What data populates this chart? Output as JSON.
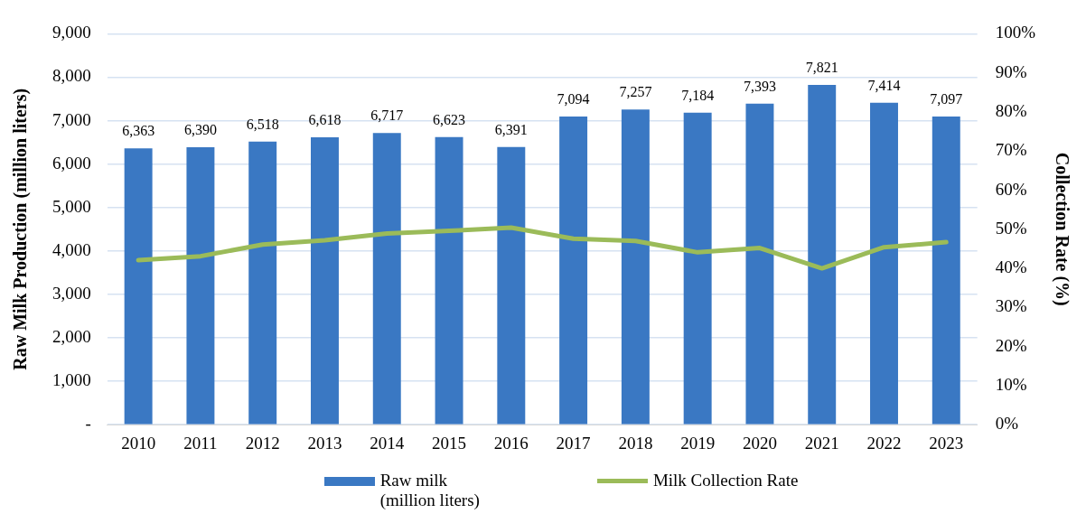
{
  "chart_data": {
    "type": "bar",
    "ylabel": "Raw Milk Production (million liters)",
    "y2label": "Collection Rate (%)",
    "categories": [
      "2010",
      "2011",
      "2012",
      "2013",
      "2014",
      "2015",
      "2016",
      "2017",
      "2018",
      "2019",
      "2020",
      "2021",
      "2022",
      "2023"
    ],
    "series": [
      {
        "name": "Raw milk\n(million liters)",
        "color": "#3a78c3",
        "values": [
          6363,
          6390,
          6518,
          6618,
          6717,
          6623,
          6391,
          7094,
          7257,
          7184,
          7393,
          7821,
          7414,
          7097
        ],
        "value_labels": [
          "6,363",
          "6,390",
          "6,518",
          "6,618",
          "6,717",
          "6,623",
          "6,391",
          "7,094",
          "7,257",
          "7,184",
          "7,393",
          "7,821",
          "7,414",
          "7,097"
        ]
      },
      {
        "name": "Milk Collection Rate",
        "type": "line",
        "axis": "y2",
        "color": "#9bbb59",
        "values": [
          42.1,
          43.1,
          46.1,
          47.2,
          48.9,
          49.6,
          50.4,
          47.6,
          47.0,
          44.1,
          45.2,
          40.0,
          45.4,
          46.7
        ]
      }
    ],
    "ylim": [
      0,
      9000
    ],
    "yticks": [
      {
        "value": 0,
        "label": "-"
      },
      {
        "value": 1000,
        "label": "1,000"
      },
      {
        "value": 2000,
        "label": "2,000"
      },
      {
        "value": 3000,
        "label": "3,000"
      },
      {
        "value": 4000,
        "label": "4,000"
      },
      {
        "value": 5000,
        "label": "5,000"
      },
      {
        "value": 6000,
        "label": "6,000"
      },
      {
        "value": 7000,
        "label": "7,000"
      },
      {
        "value": 8000,
        "label": "8,000"
      },
      {
        "value": 9000,
        "label": "9,000"
      }
    ],
    "y2lim": [
      0,
      100
    ],
    "y2ticks": [
      {
        "value": 0,
        "label": "0%"
      },
      {
        "value": 10,
        "label": "10%"
      },
      {
        "value": 20,
        "label": "20%"
      },
      {
        "value": 30,
        "label": "30%"
      },
      {
        "value": 40,
        "label": "40%"
      },
      {
        "value": 50,
        "label": "50%"
      },
      {
        "value": 60,
        "label": "60%"
      },
      {
        "value": 70,
        "label": "70%"
      },
      {
        "value": 80,
        "label": "80%"
      },
      {
        "value": 90,
        "label": "90%"
      },
      {
        "value": 100,
        "label": "100%"
      }
    ],
    "grid": "y",
    "legend": "bottom",
    "marker": "none",
    "line_style": "solid"
  }
}
